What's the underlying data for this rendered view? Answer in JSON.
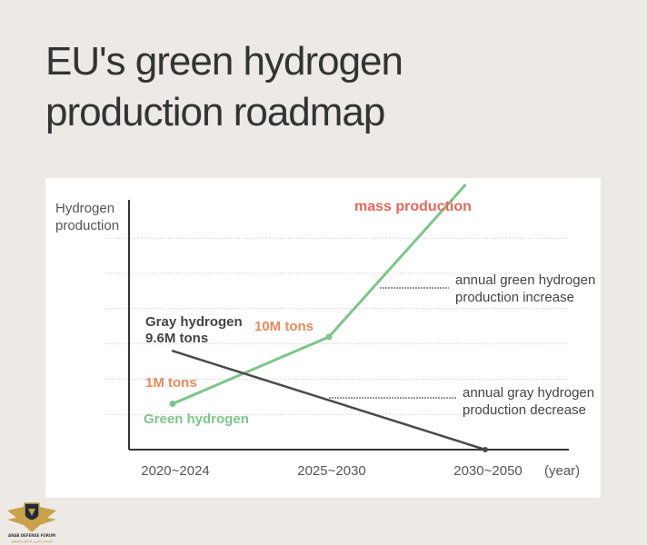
{
  "title": {
    "line1": "EU's green hydrogen",
    "line2": "production roadmap"
  },
  "colors": {
    "background": "#ede9e4",
    "panel": "#ffffff",
    "green": "#7cc68a",
    "gray": "#4a4a4a",
    "orange": "#e8895a",
    "red": "#e8675a",
    "text": "#333333"
  },
  "chart_data": {
    "type": "line",
    "title": "EU's green hydrogen production roadmap",
    "ylabel_lines": [
      "Hydrogen",
      "production"
    ],
    "xlabel": "(year)",
    "categories": [
      "2020~2024",
      "2025~2030",
      "2030~2050"
    ],
    "grid": "dotted horizontal",
    "series": [
      {
        "name": "Green hydrogen",
        "points": [
          {
            "label": "2020~2024",
            "x": 0,
            "y": 1.3
          },
          {
            "label": "2025~2030",
            "x": 1,
            "y": 3.2
          },
          {
            "label": "",
            "x": 1.87,
            "y": 7.5
          }
        ]
      },
      {
        "name": "Gray hydrogen",
        "points": [
          {
            "label": "2020~2024",
            "x": 0,
            "y": 2.8
          },
          {
            "label": "2030~2050",
            "x": 2,
            "y": 0
          }
        ]
      }
    ],
    "annotations": {
      "green_start_value": "1M tons",
      "green_mid_value": "10M tons",
      "green_series_label": "Green hydrogen",
      "gray_label_line1": "Gray hydrogen",
      "gray_label_line2": "9.6M tons",
      "mass_production": "mass production",
      "green_increase_line1": "annual green hydrogen",
      "green_increase_line2": "production increase",
      "gray_decrease_line1": "annual gray hydrogen",
      "gray_decrease_line2": "production decrease"
    }
  },
  "logo": {
    "line1": "ARAB DEFENSE FORUM",
    "line2": "المنتدى العربي للدفاع والتسليح"
  }
}
